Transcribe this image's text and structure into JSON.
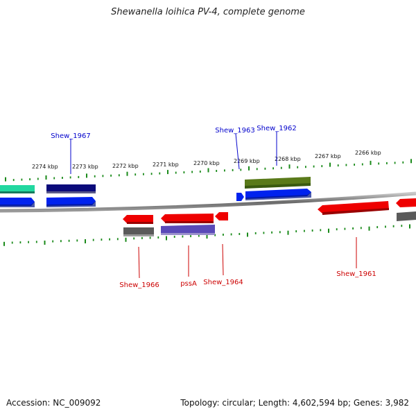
{
  "title": "Shewanella loihica PV-4, complete genome",
  "footer": {
    "accession": "Accession: NC_009092",
    "summary": "Topology: circular; Length: 4,602,594 bp; Genes: 3,982"
  },
  "colors": {
    "backbone": "#777777",
    "ticks": "#1a8a1a",
    "forward_label": "#0000cc",
    "reverse_label": "#cc0000",
    "gene_red": "#ee0000",
    "gene_blue": "#0022ee",
    "gene_navy": "#0a0a7a",
    "gene_olive": "#5a7a1a",
    "gene_grey": "#5a5a5a",
    "gene_purple": "#5a4ab8",
    "gene_teal": "#22d8a0"
  },
  "scale_labels": [
    "2274 kbp",
    "2273 kbp",
    "2272 kbp",
    "2271 kbp",
    "2270 kbp",
    "2269 kbp",
    "2268 kbp",
    "2267 kbp",
    "2266 kbp"
  ],
  "gene_labels": {
    "forward": [
      "Shew_1967",
      "Shew_1963",
      "Shew_1962"
    ],
    "reverse": [
      "Shew_1966",
      "pssA",
      "Shew_1964",
      "Shew_1961"
    ]
  }
}
